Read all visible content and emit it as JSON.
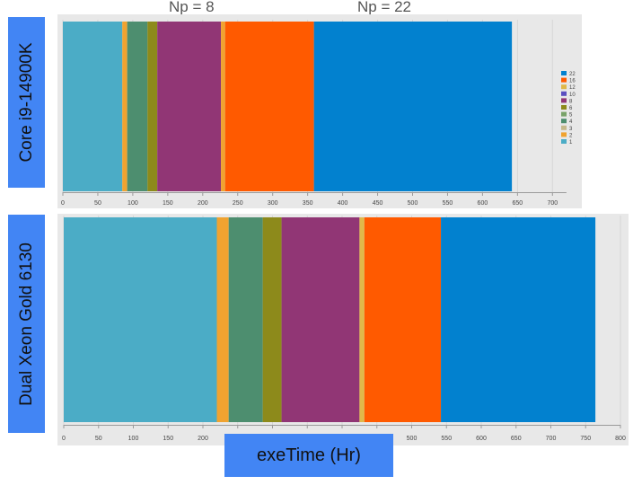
{
  "annotations": [
    "Np = 8",
    "Np = 22"
  ],
  "xlabel": "exeTime (Hr)",
  "colors": {
    "1": "#4bacc6",
    "2": "#f0a330",
    "3": "#c5b98b",
    "4": "#4d8e6f",
    "5": "#79a36a",
    "6": "#8d8a1b",
    "8": "#913675",
    "10": "#5b4fc0",
    "12": "#e0b84a",
    "16": "#ff5a00",
    "22": "#0281cf"
  },
  "chart_data": [
    {
      "type": "bar",
      "orientation": "horizontal-stacked-segments",
      "title": "Core i9-14900K",
      "xlim": [
        0,
        720
      ],
      "xticks": [
        0,
        50,
        100,
        150,
        200,
        250,
        300,
        350,
        400,
        450,
        500,
        550,
        600,
        650,
        700
      ],
      "legend": {
        "placement": "right",
        "entries": [
          "22",
          "16",
          "12",
          "10",
          "8",
          "6",
          "5",
          "4",
          "3",
          "2",
          "1"
        ]
      },
      "segments": [
        {
          "np": "1",
          "start": 0,
          "end": 85
        },
        {
          "np": "2",
          "start": 85,
          "end": 92
        },
        {
          "np": "4",
          "start": 92,
          "end": 121
        },
        {
          "np": "6",
          "start": 121,
          "end": 135
        },
        {
          "np": "8",
          "start": 135,
          "end": 226
        },
        {
          "np": "2",
          "start": 226,
          "end": 232
        },
        {
          "np": "16",
          "start": 232,
          "end": 359
        },
        {
          "np": "22",
          "start": 359,
          "end": 642
        }
      ]
    },
    {
      "type": "bar",
      "orientation": "horizontal-stacked-segments",
      "title": "Dual Xeon Gold 6130",
      "xlim": [
        0,
        800
      ],
      "xticks": [
        0,
        50,
        100,
        150,
        200,
        250,
        300,
        350,
        400,
        450,
        500,
        550,
        600,
        650,
        700,
        750,
        800
      ],
      "segments": [
        {
          "np": "1",
          "start": 0,
          "end": 220
        },
        {
          "np": "2",
          "start": 220,
          "end": 237
        },
        {
          "np": "4",
          "start": 237,
          "end": 286
        },
        {
          "np": "6",
          "start": 286,
          "end": 313
        },
        {
          "np": "8",
          "start": 313,
          "end": 425
        },
        {
          "np": "12",
          "start": 425,
          "end": 432
        },
        {
          "np": "16",
          "start": 432,
          "end": 542
        },
        {
          "np": "22",
          "start": 542,
          "end": 764
        }
      ]
    }
  ]
}
